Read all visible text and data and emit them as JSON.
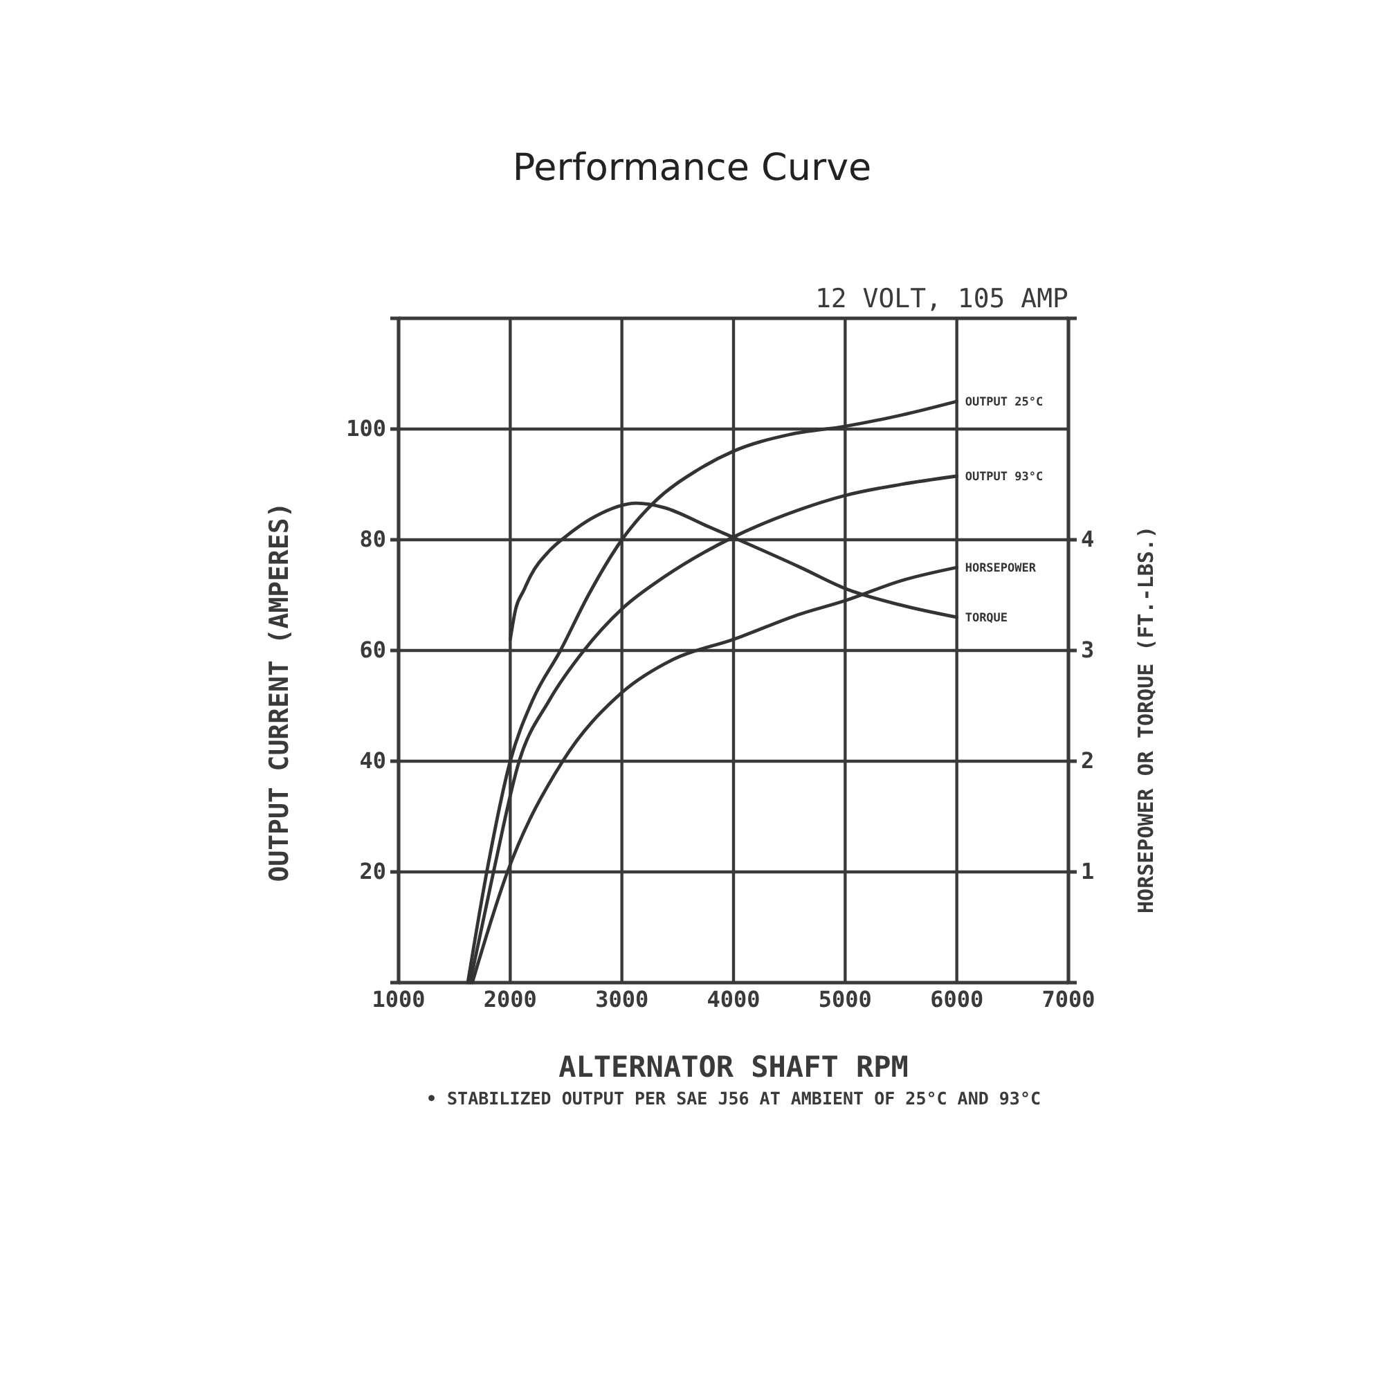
{
  "chart_data": {
    "type": "line",
    "title": "Performance Curve",
    "subtitle": "12 VOLT, 105 AMP",
    "xlabel": "ALTERNATOR SHAFT RPM",
    "ylabel": "OUTPUT CURRENT (AMPERES)",
    "y2label": "HORSEPOWER OR TORQUE (FT.-LBS.)",
    "annotations": [
      "• STABILIZED OUTPUT PER SAE J56 AT AMBIENT OF 25°C AND 93°C"
    ],
    "xlim": [
      1000,
      7000
    ],
    "xticks": [
      1000,
      2000,
      3000,
      4000,
      5000,
      6000,
      7000
    ],
    "ylim": [
      0,
      120
    ],
    "yticks": [
      20,
      40,
      60,
      80,
      100
    ],
    "y2lim": [
      0,
      6
    ],
    "y2ticks": [
      1,
      2,
      3,
      4
    ],
    "grid": true,
    "marker": "none",
    "line_style": "solid",
    "series": [
      {
        "name": "OUTPUT 25°C",
        "color": "#333333",
        "x": [
          1620,
          1790,
          2000,
          2200,
          2450,
          2700,
          3000,
          3300,
          3670,
          4000,
          4500,
          5000,
          5500,
          6000
        ],
        "values": [
          0,
          20,
          40,
          51,
          60,
          70,
          80,
          87,
          92.5,
          96,
          99,
          100.5,
          102.5,
          105
        ]
      },
      {
        "name": "OUTPUT 93°C",
        "color": "#333333",
        "x": [
          1640,
          1850,
          2080,
          2350,
          2660,
          3000,
          3380,
          4000,
          4600,
          5000,
          5500,
          6000
        ],
        "values": [
          0,
          20,
          40,
          51,
          60,
          67.5,
          73.3,
          80.5,
          85.5,
          88,
          90,
          91.5
        ]
      },
      {
        "name": "HORSEPOWER",
        "color": "#333333",
        "axis": "y2",
        "x": [
          1660,
          1975,
          2470,
          3000,
          3460,
          4000,
          4600,
          5000,
          5500,
          6000
        ],
        "values": [
          0,
          1,
          2,
          2.62,
          2.92,
          3.1,
          3.33,
          3.45,
          3.63,
          3.75
        ]
      },
      {
        "name": "TORQUE",
        "color": "#333333",
        "axis": "y2",
        "x": [
          2000,
          2050,
          2120,
          2180,
          2350,
          2510,
          2760,
          3130,
          3380,
          3750,
          4000,
          4600,
          5000,
          5500,
          6000
        ],
        "values": [
          3.1,
          3.38,
          3.54,
          3.67,
          3.9,
          4.04,
          4.21,
          4.33,
          4.29,
          4.13,
          4.02,
          3.75,
          3.56,
          3.41,
          3.3
        ]
      }
    ]
  }
}
